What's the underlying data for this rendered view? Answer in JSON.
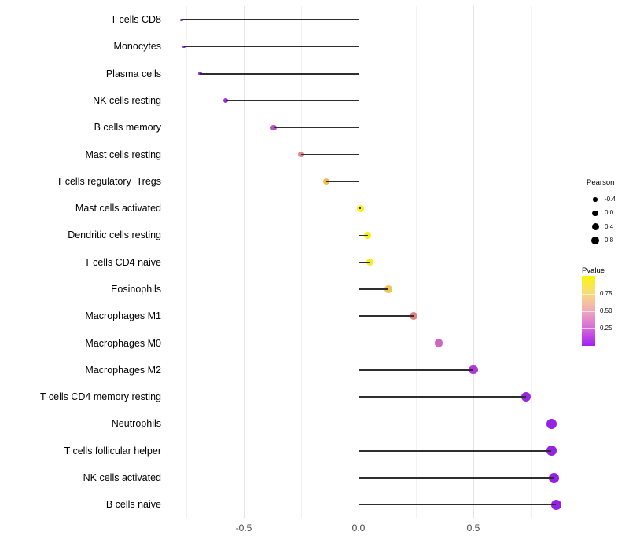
{
  "chart_data": {
    "type": "scatter",
    "subtype": "lollipop",
    "title": "",
    "xlabel": "",
    "ylabel": "",
    "xlim": [
      -0.85,
      0.95
    ],
    "grid": true,
    "grid_values": [
      -0.75,
      -0.5,
      -0.25,
      0,
      0.25,
      0.5,
      0.75
    ],
    "x_ticks": [
      {
        "value": -0.5,
        "label": "-0.5"
      },
      {
        "value": 0.0,
        "label": "0.0"
      },
      {
        "value": 0.5,
        "label": "0.5"
      }
    ],
    "points": [
      {
        "label": "T cells CD8",
        "pearson": -0.77,
        "pvalue_est": 0.03,
        "color": "#8526D8",
        "radius": 1.7
      },
      {
        "label": "Monocytes",
        "pearson": -0.76,
        "pvalue_est": 0.04,
        "color": "#8B26DA",
        "radius": 1.9
      },
      {
        "label": "Plasma cells",
        "pearson": -0.69,
        "pvalue_est": 0.05,
        "color": "#9129DC",
        "radius": 2.4
      },
      {
        "label": "NK cells resting",
        "pearson": -0.58,
        "pvalue_est": 0.07,
        "color": "#9F2BDF",
        "radius": 3.0
      },
      {
        "label": "B cells memory",
        "pearson": -0.37,
        "pvalue_est": 0.27,
        "color": "#BC4FBE",
        "radius": 3.6
      },
      {
        "label": "Mast cells resting",
        "pearson": -0.25,
        "pvalue_est": 0.48,
        "color": "#E38A90",
        "radius": 3.8
      },
      {
        "label": "T cells regulatory  Tregs",
        "pearson": -0.14,
        "pvalue_est": 0.72,
        "color": "#F0BC4F",
        "radius": 4.1
      },
      {
        "label": "Mast cells activated",
        "pearson": 0.01,
        "pvalue_est": 0.95,
        "color": "#FAF30A",
        "radius": 4.5
      },
      {
        "label": "Dendritic cells resting",
        "pearson": 0.04,
        "pvalue_est": 0.93,
        "color": "#F9EE18",
        "radius": 4.6
      },
      {
        "label": "T cells CD4 naive",
        "pearson": 0.05,
        "pvalue_est": 0.92,
        "color": "#F9EE18",
        "radius": 4.6
      },
      {
        "label": "Eosinophils",
        "pearson": 0.13,
        "pvalue_est": 0.76,
        "color": "#F0C455",
        "radius": 4.8
      },
      {
        "label": "Macrophages M1",
        "pearson": 0.24,
        "pvalue_est": 0.5,
        "color": "#E2837F",
        "radius": 5.0
      },
      {
        "label": "Macrophages M0",
        "pearson": 0.35,
        "pvalue_est": 0.31,
        "color": "#CD68C0",
        "radius": 5.3
      },
      {
        "label": "Macrophages M2",
        "pearson": 0.5,
        "pvalue_est": 0.13,
        "color": "#AC39D8",
        "radius": 5.6
      },
      {
        "label": "T cells CD4 memory resting",
        "pearson": 0.73,
        "pvalue_est": 0.02,
        "color": "#9827E2",
        "radius": 6.1
      },
      {
        "label": "Neutrophils",
        "pearson": 0.84,
        "pvalue_est": 0.01,
        "color": "#9423E4",
        "radius": 6.4
      },
      {
        "label": "T cells follicular helper",
        "pearson": 0.84,
        "pvalue_est": 0.01,
        "color": "#9423E4",
        "radius": 6.4
      },
      {
        "label": "NK cells activated",
        "pearson": 0.85,
        "pvalue_est": 0.008,
        "color": "#9322E5",
        "radius": 6.5
      },
      {
        "label": "B cells naive",
        "pearson": 0.86,
        "pvalue_est": 0.005,
        "color": "#9321E6",
        "radius": 6.6
      }
    ],
    "legend_size": {
      "title": "Pearson",
      "dot_color": "#000000",
      "entries": [
        {
          "label": "-0.4",
          "radius": 2.7
        },
        {
          "label": "0.0",
          "radius": 3.7
        },
        {
          "label": "0.4",
          "radius": 4.5
        },
        {
          "label": "0.8",
          "radius": 5.2
        }
      ]
    },
    "legend_color": {
      "title": "Pvalue",
      "gradient_top_to_bottom": [
        "#FBF50A",
        "#F7DA80",
        "#F0A9BB",
        "#D569D9",
        "#A321F0"
      ],
      "labels": [
        {
          "value": 0.75,
          "label": "0.75"
        },
        {
          "value": 0.5,
          "label": "0.50"
        },
        {
          "value": 0.25,
          "label": "0.25"
        }
      ]
    },
    "layout_hints": {
      "stick_color": "#2e2e2e",
      "major_grid_color": "#e4e4e4",
      "minor_grid_color": "#f2f2f2",
      "legend_position": "right"
    }
  }
}
